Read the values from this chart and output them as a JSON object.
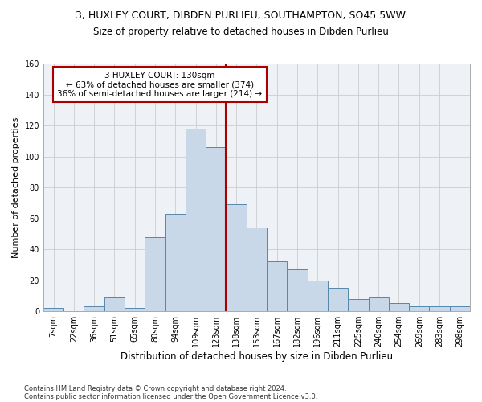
{
  "title1": "3, HUXLEY COURT, DIBDEN PURLIEU, SOUTHAMPTON, SO45 5WW",
  "title2": "Size of property relative to detached houses in Dibden Purlieu",
  "xlabel": "Distribution of detached houses by size in Dibden Purlieu",
  "ylabel": "Number of detached properties",
  "footer1": "Contains HM Land Registry data © Crown copyright and database right 2024.",
  "footer2": "Contains public sector information licensed under the Open Government Licence v3.0.",
  "bar_labels": [
    "7sqm",
    "22sqm",
    "36sqm",
    "51sqm",
    "65sqm",
    "80sqm",
    "94sqm",
    "109sqm",
    "123sqm",
    "138sqm",
    "153sqm",
    "167sqm",
    "182sqm",
    "196sqm",
    "211sqm",
    "225sqm",
    "240sqm",
    "254sqm",
    "269sqm",
    "283sqm",
    "298sqm"
  ],
  "bar_values": [
    2,
    0,
    3,
    9,
    2,
    48,
    63,
    118,
    106,
    69,
    54,
    32,
    27,
    20,
    15,
    8,
    9,
    5,
    3,
    3,
    3
  ],
  "bar_color": "#c8d8e8",
  "bar_edge_color": "#5588aa",
  "annotation_text1": "3 HUXLEY COURT: 130sqm",
  "annotation_text2": "← 63% of detached houses are smaller (374)",
  "annotation_text3": "36% of semi-detached houses are larger (214) →",
  "vline_color": "#aa0000",
  "annotation_box_color": "#aa0000",
  "bg_color": "#eef2f7",
  "ylim": [
    0,
    160
  ],
  "title1_fontsize": 9,
  "title2_fontsize": 8.5,
  "xlabel_fontsize": 8.5,
  "ylabel_fontsize": 8,
  "tick_fontsize": 7,
  "annotation_fontsize": 7.5,
  "footer_fontsize": 6
}
